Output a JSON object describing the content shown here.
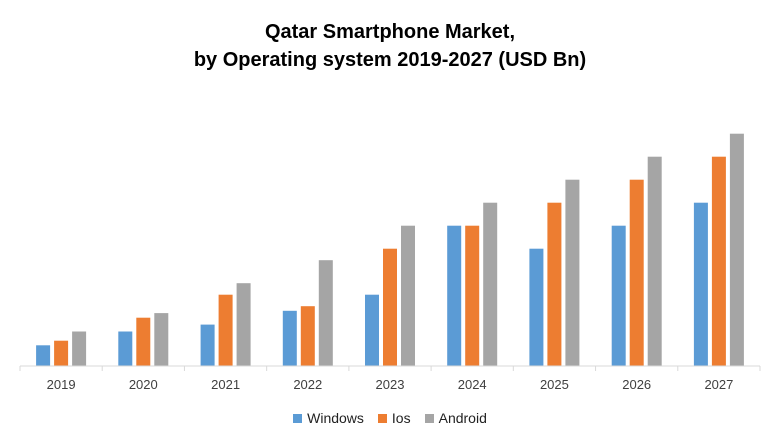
{
  "chart_data": {
    "type": "bar",
    "title_lines": [
      "Qatar Smartphone Market,",
      "by Operating system 2019-2027 (USD Bn)"
    ],
    "xlabel": "",
    "ylabel": "",
    "ylim": [
      0,
      10
    ],
    "grid": false,
    "categories": [
      "2019",
      "2020",
      "2021",
      "2022",
      "2023",
      "2024",
      "2025",
      "2026",
      "2027"
    ],
    "series": [
      {
        "name": "Windows",
        "color": "#5B9BD5",
        "values": [
          0.9,
          1.5,
          1.8,
          2.4,
          3.1,
          6.1,
          5.1,
          6.1,
          7.1
        ]
      },
      {
        "name": "Ios",
        "color": "#ED7D31",
        "values": [
          1.1,
          2.1,
          3.1,
          2.6,
          5.1,
          6.1,
          7.1,
          8.1,
          9.1
        ]
      },
      {
        "name": "Android",
        "color": "#A5A5A5",
        "values": [
          1.5,
          2.3,
          3.6,
          4.6,
          6.1,
          7.1,
          8.1,
          9.1,
          10.1
        ]
      }
    ],
    "legend_position": "bottom"
  }
}
